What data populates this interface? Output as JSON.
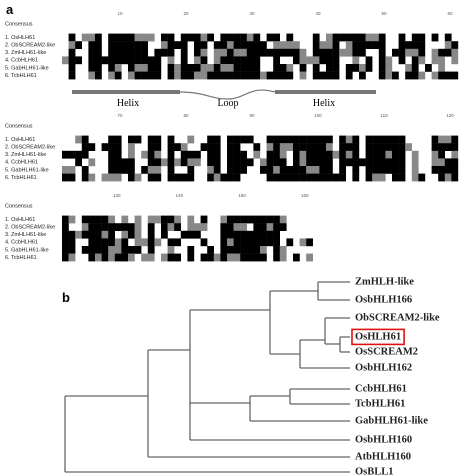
{
  "panel_a": {
    "label": "a",
    "sequence_names": [
      "Consensus",
      "1. OsHLH61",
      "2. ObSCREAM2-like",
      "3. ZmHLH61-like",
      "4. CcbHLH61",
      "5. GabHLH61-like",
      "6. TcbHLH61"
    ],
    "rulers": [
      [
        "10",
        "20",
        "30",
        "40",
        "50",
        "60"
      ],
      [
        "70",
        "80",
        "90",
        "100",
        "110",
        "120"
      ],
      [
        "130",
        "140",
        "150",
        "160"
      ]
    ],
    "structure": [
      "Helix",
      "Loop",
      "Helix"
    ]
  },
  "panel_b": {
    "label": "b",
    "leaves": [
      "ZmHLH-like",
      "OsbHLH166",
      "ObSCREAM2-like",
      "OsHLH61",
      "OsSCREAM2",
      "OsbHLH162",
      "CcbHLH61",
      "TcbHLH61",
      "GabHLH61-like",
      "OsbHLH160",
      "AtbHLH160",
      "OsBLL1"
    ],
    "highlighted_leaf": 3
  }
}
